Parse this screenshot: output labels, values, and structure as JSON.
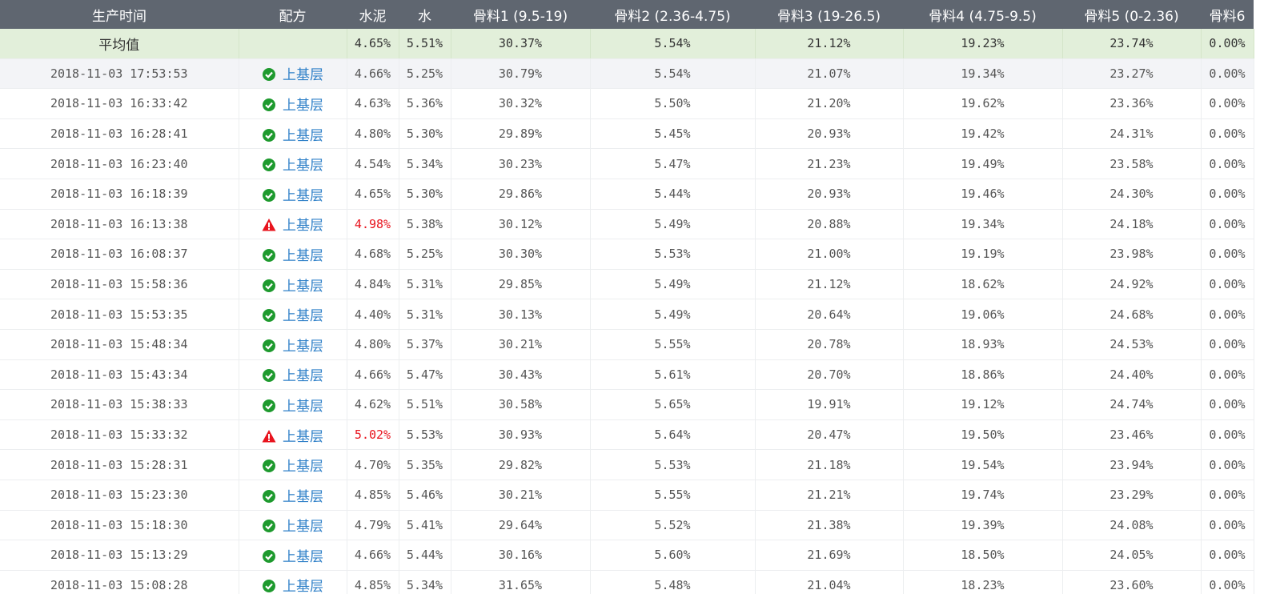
{
  "header": {
    "columns": [
      "生产时间",
      "配方",
      "水泥",
      "水",
      "骨料1 (9.5-19)",
      "骨料2 (2.36-4.75)",
      "骨料3 (19-26.5)",
      "骨料4 (4.75-9.5)",
      "骨料5 (0-2.36)",
      "骨料6"
    ]
  },
  "average": {
    "label": "平均值",
    "values": [
      "4.65%",
      "5.51%",
      "30.37%",
      "5.54%",
      "21.12%",
      "19.23%",
      "23.74%",
      "0.00%"
    ]
  },
  "rows": [
    {
      "time": "2018-11-03 17:53:53",
      "alert": false,
      "recipe": "上基层",
      "values": [
        "4.66%",
        "5.25%",
        "30.79%",
        "5.54%",
        "21.07%",
        "19.34%",
        "23.27%",
        "0.00%"
      ]
    },
    {
      "time": "2018-11-03 16:33:42",
      "alert": false,
      "recipe": "上基层",
      "values": [
        "4.63%",
        "5.36%",
        "30.32%",
        "5.50%",
        "21.20%",
        "19.62%",
        "23.36%",
        "0.00%"
      ]
    },
    {
      "time": "2018-11-03 16:28:41",
      "alert": false,
      "recipe": "上基层",
      "values": [
        "4.80%",
        "5.30%",
        "29.89%",
        "5.45%",
        "20.93%",
        "19.42%",
        "24.31%",
        "0.00%"
      ]
    },
    {
      "time": "2018-11-03 16:23:40",
      "alert": false,
      "recipe": "上基层",
      "values": [
        "4.54%",
        "5.34%",
        "30.23%",
        "5.47%",
        "21.23%",
        "19.49%",
        "23.58%",
        "0.00%"
      ]
    },
    {
      "time": "2018-11-03 16:18:39",
      "alert": false,
      "recipe": "上基层",
      "values": [
        "4.65%",
        "5.30%",
        "29.86%",
        "5.44%",
        "20.93%",
        "19.46%",
        "24.30%",
        "0.00%"
      ]
    },
    {
      "time": "2018-11-03 16:13:38",
      "alert": true,
      "recipe": "上基层",
      "values": [
        "4.98%",
        "5.38%",
        "30.12%",
        "5.49%",
        "20.88%",
        "19.34%",
        "24.18%",
        "0.00%"
      ]
    },
    {
      "time": "2018-11-03 16:08:37",
      "alert": false,
      "recipe": "上基层",
      "values": [
        "4.68%",
        "5.25%",
        "30.30%",
        "5.53%",
        "21.00%",
        "19.19%",
        "23.98%",
        "0.00%"
      ]
    },
    {
      "time": "2018-11-03 15:58:36",
      "alert": false,
      "recipe": "上基层",
      "values": [
        "4.84%",
        "5.31%",
        "29.85%",
        "5.49%",
        "21.12%",
        "18.62%",
        "24.92%",
        "0.00%"
      ]
    },
    {
      "time": "2018-11-03 15:53:35",
      "alert": false,
      "recipe": "上基层",
      "values": [
        "4.40%",
        "5.31%",
        "30.13%",
        "5.49%",
        "20.64%",
        "19.06%",
        "24.68%",
        "0.00%"
      ]
    },
    {
      "time": "2018-11-03 15:48:34",
      "alert": false,
      "recipe": "上基层",
      "values": [
        "4.80%",
        "5.37%",
        "30.21%",
        "5.55%",
        "20.78%",
        "18.93%",
        "24.53%",
        "0.00%"
      ]
    },
    {
      "time": "2018-11-03 15:43:34",
      "alert": false,
      "recipe": "上基层",
      "values": [
        "4.66%",
        "5.47%",
        "30.43%",
        "5.61%",
        "20.70%",
        "18.86%",
        "24.40%",
        "0.00%"
      ]
    },
    {
      "time": "2018-11-03 15:38:33",
      "alert": false,
      "recipe": "上基层",
      "values": [
        "4.62%",
        "5.51%",
        "30.58%",
        "5.65%",
        "19.91%",
        "19.12%",
        "24.74%",
        "0.00%"
      ]
    },
    {
      "time": "2018-11-03 15:33:32",
      "alert": true,
      "recipe": "上基层",
      "values": [
        "5.02%",
        "5.53%",
        "30.93%",
        "5.64%",
        "20.47%",
        "19.50%",
        "23.46%",
        "0.00%"
      ]
    },
    {
      "time": "2018-11-03 15:28:31",
      "alert": false,
      "recipe": "上基层",
      "values": [
        "4.70%",
        "5.35%",
        "29.82%",
        "5.53%",
        "21.18%",
        "19.54%",
        "23.94%",
        "0.00%"
      ]
    },
    {
      "time": "2018-11-03 15:23:30",
      "alert": false,
      "recipe": "上基层",
      "values": [
        "4.85%",
        "5.46%",
        "30.21%",
        "5.55%",
        "21.21%",
        "19.74%",
        "23.29%",
        "0.00%"
      ]
    },
    {
      "time": "2018-11-03 15:18:30",
      "alert": false,
      "recipe": "上基层",
      "values": [
        "4.79%",
        "5.41%",
        "29.64%",
        "5.52%",
        "21.38%",
        "19.39%",
        "24.08%",
        "0.00%"
      ]
    },
    {
      "time": "2018-11-03 15:13:29",
      "alert": false,
      "recipe": "上基层",
      "values": [
        "4.66%",
        "5.44%",
        "30.16%",
        "5.60%",
        "21.69%",
        "18.50%",
        "24.05%",
        "0.00%"
      ]
    },
    {
      "time": "2018-11-03 15:08:28",
      "alert": false,
      "recipe": "上基层",
      "values": [
        "4.85%",
        "5.34%",
        "31.65%",
        "5.48%",
        "21.04%",
        "18.23%",
        "23.60%",
        "0.00%"
      ]
    }
  ]
}
